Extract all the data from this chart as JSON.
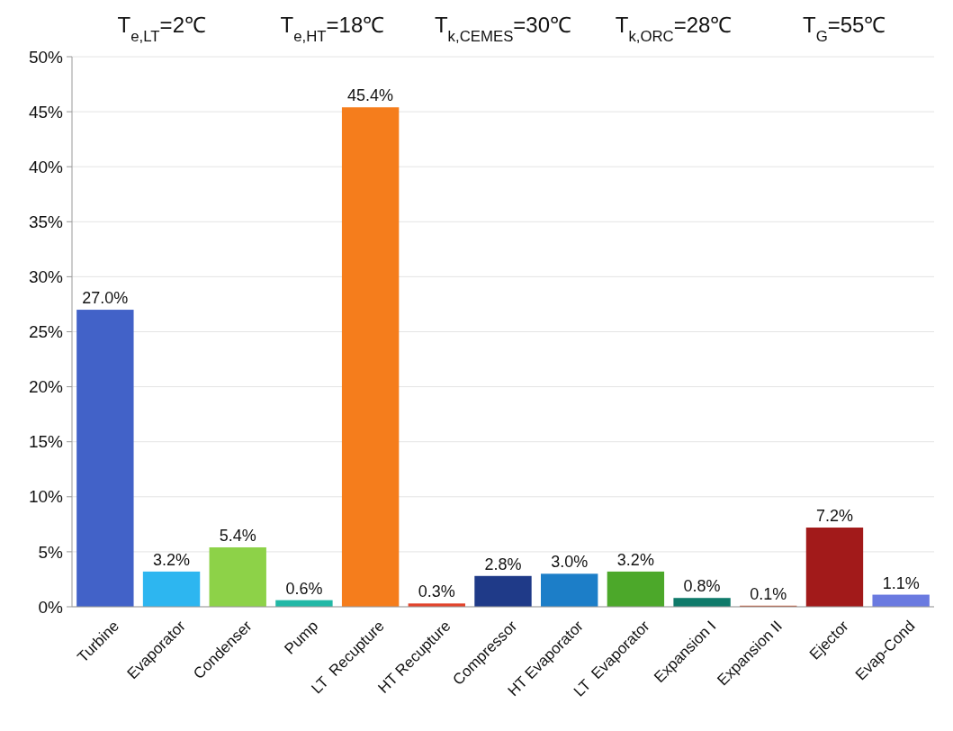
{
  "chart_data": {
    "type": "bar",
    "annotations": [
      "T$_{e,LT}$=2℃",
      "T$_{e,HT}$=18℃",
      "T$_{k,CEMES}$=30℃",
      "T$_{k,ORC}$=28℃",
      "T$_{G}$=55℃"
    ],
    "categories": [
      "Turbine",
      "Evaporator",
      "Condenser",
      "Pump",
      "LT  Recupture",
      "HT Recupture",
      "Compressor",
      "HT Evaporator",
      "LT  Evaporator",
      "Expansion I",
      "Expansion II",
      "Ejector",
      "Evap-Cond"
    ],
    "values": [
      27.0,
      3.2,
      5.4,
      0.6,
      45.4,
      0.3,
      2.8,
      3.0,
      3.2,
      0.8,
      0.1,
      7.2,
      1.1
    ],
    "value_labels": [
      "27.0%",
      "3.2%",
      "5.4%",
      "0.6%",
      "45.4%",
      "0.3%",
      "2.8%",
      "3.0%",
      "3.2%",
      "0.8%",
      "0.1%",
      "7.2%",
      "1.1%"
    ],
    "colors": [
      "#4262c8",
      "#2db6f0",
      "#8dd248",
      "#22b8a6",
      "#f57d1c",
      "#e2442c",
      "#1f3a88",
      "#1c7ec8",
      "#4ca82a",
      "#0f7a6a",
      "#c05030",
      "#a21a1a",
      "#6a7ae0"
    ],
    "ylim": [
      0,
      50
    ],
    "yticks": [
      {
        "value": 0,
        "label": "0%"
      },
      {
        "value": 5,
        "label": "5%"
      },
      {
        "value": 10,
        "label": "10%"
      },
      {
        "value": 15,
        "label": "15%"
      },
      {
        "value": 20,
        "label": "20%"
      },
      {
        "value": 25,
        "label": "25%"
      },
      {
        "value": 30,
        "label": "30%"
      },
      {
        "value": 35,
        "label": "35%"
      },
      {
        "value": 40,
        "label": "40%"
      },
      {
        "value": 45,
        "label": "45%"
      },
      {
        "value": 50,
        "label": "50%"
      }
    ],
    "grid": "y"
  }
}
